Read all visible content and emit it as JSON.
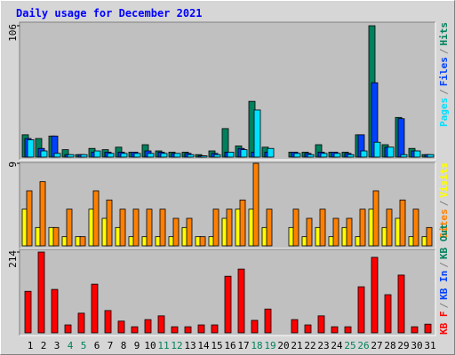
{
  "chart_data": [
    {
      "type": "bar",
      "title": "Daily usage for December 2021",
      "series": [
        {
          "name": "Hits",
          "color": "#00805c",
          "values": [
            18,
            15,
            17,
            6,
            2,
            7,
            6,
            8,
            4,
            10,
            5,
            4,
            4,
            2,
            5,
            23,
            9,
            45,
            8,
            0,
            4,
            4,
            10,
            4,
            4,
            18,
            106,
            10,
            32,
            7,
            2
          ]
        },
        {
          "name": "Files",
          "color": "#0040ff",
          "values": [
            15,
            7,
            17,
            2,
            2,
            4,
            4,
            4,
            4,
            5,
            4,
            3,
            3,
            1,
            3,
            4,
            7,
            4,
            4,
            0,
            4,
            3,
            4,
            4,
            3,
            18,
            60,
            8,
            31,
            5,
            2
          ]
        },
        {
          "name": "Pages",
          "color": "#00e0ff",
          "values": [
            14,
            5,
            3,
            2,
            2,
            5,
            3,
            3,
            3,
            3,
            3,
            3,
            2,
            1,
            2,
            4,
            6,
            38,
            7,
            0,
            3,
            2,
            3,
            3,
            2,
            5,
            12,
            8,
            2,
            5,
            2
          ]
        }
      ],
      "legend_separator": "/",
      "ylim": [
        0,
        106
      ],
      "yticks": [
        106
      ]
    },
    {
      "type": "bar",
      "series": [
        {
          "name": "Visits",
          "color": "#ffff00",
          "values": [
            4,
            2,
            2,
            1,
            1,
            4,
            3,
            2,
            1,
            1,
            1,
            1,
            2,
            1,
            1,
            3,
            4,
            4,
            2,
            0,
            2,
            1,
            2,
            1,
            2,
            1,
            4,
            2,
            3,
            1,
            1
          ]
        },
        {
          "name": "Sites",
          "color": "#ff8000",
          "values": [
            6,
            7,
            2,
            4,
            1,
            6,
            5,
            4,
            4,
            4,
            4,
            3,
            3,
            1,
            4,
            4,
            5,
            9,
            4,
            0,
            4,
            3,
            4,
            3,
            3,
            4,
            6,
            4,
            5,
            4,
            2
          ]
        }
      ],
      "legend_separator": "/",
      "ylim": [
        0,
        9
      ],
      "yticks": [
        9
      ]
    },
    {
      "type": "bar",
      "categories": [
        "1",
        "2",
        "3",
        "4",
        "5",
        "6",
        "7",
        "8",
        "9",
        "10",
        "11",
        "12",
        "13",
        "14",
        "15",
        "16",
        "17",
        "18",
        "19",
        "20",
        "21",
        "22",
        "23",
        "24",
        "25",
        "26",
        "27",
        "28",
        "29",
        "30",
        "31"
      ],
      "category_colors": [
        "#000000",
        "#000000",
        "#000000",
        "#00805c",
        "#00805c",
        "#000000",
        "#000000",
        "#000000",
        "#000000",
        "#000000",
        "#00805c",
        "#00805c",
        "#000000",
        "#000000",
        "#000000",
        "#000000",
        "#000000",
        "#00805c",
        "#00805c",
        "#000000",
        "#000000",
        "#000000",
        "#000000",
        "#000000",
        "#00805c",
        "#00805c",
        "#000000",
        "#000000",
        "#000000",
        "#000000",
        "#000000"
      ],
      "series": [
        {
          "name": "KB F",
          "color": "#ff0000",
          "values": [
            110,
            214,
            115,
            21,
            52,
            129,
            59,
            31,
            16,
            35,
            45,
            16,
            16,
            21,
            21,
            150,
            169,
            33,
            63,
            0,
            35,
            21,
            45,
            16,
            16,
            122,
            200,
            101,
            153,
            16,
            23
          ]
        }
      ],
      "legend_extra": [
        {
          "name": "KB In",
          "color": "#0040ff"
        },
        {
          "name": "KB Out",
          "color": "#00805c"
        }
      ],
      "legend_separator": "/",
      "ylim": [
        0,
        214
      ],
      "yticks": [
        214
      ]
    }
  ]
}
